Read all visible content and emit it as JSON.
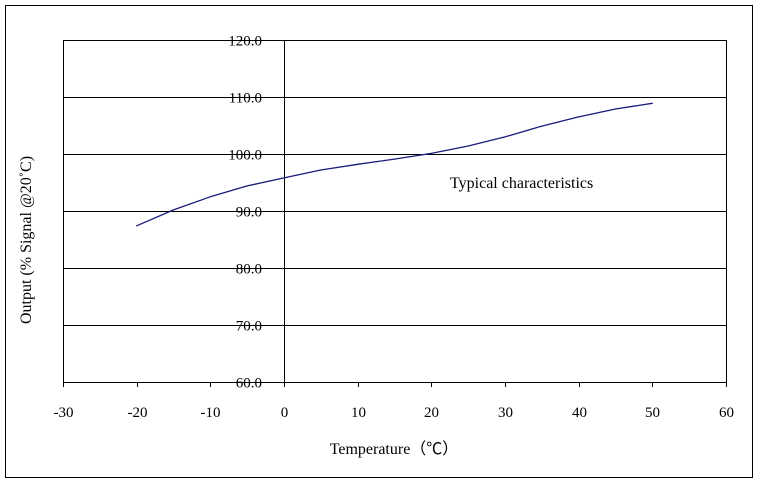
{
  "chart_data": {
    "type": "line",
    "title": "",
    "xlabel": "Temperature（℃）",
    "ylabel": "Output (% Signal @20˚C)",
    "annotation": "Typical characteristics",
    "xlim": [
      -30,
      60
    ],
    "ylim": [
      60,
      120
    ],
    "xticks": [
      "-30",
      "-20",
      "-10",
      "0",
      "10",
      "20",
      "30",
      "40",
      "50",
      "60"
    ],
    "yticks": [
      "60.0",
      "70.0",
      "80.0",
      "90.0",
      "100.0",
      "110.0",
      "120.0"
    ],
    "grid": "horizontal",
    "series": [
      {
        "name": "Typical characteristics",
        "color": "#1a1a7a",
        "x": [
          -20,
          -15,
          -10,
          -5,
          0,
          5,
          10,
          15,
          20,
          25,
          30,
          35,
          40,
          45,
          50
        ],
        "y": [
          87.4,
          90.2,
          92.5,
          94.4,
          95.8,
          97.2,
          98.2,
          99.1,
          100.1,
          101.4,
          103.0,
          104.9,
          106.5,
          107.9,
          108.9
        ]
      }
    ]
  }
}
